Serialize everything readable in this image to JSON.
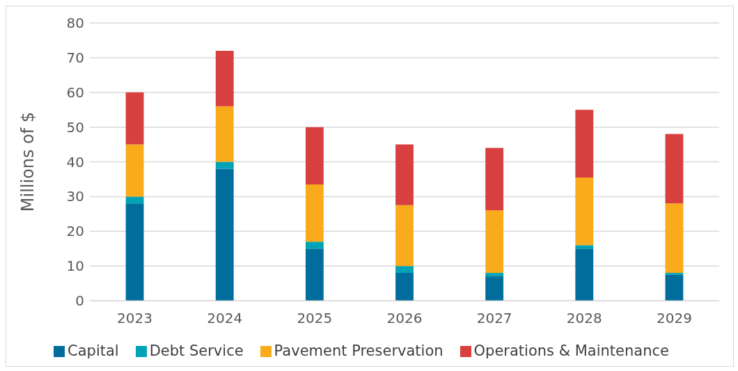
{
  "chart_data": {
    "type": "bar",
    "stacked": true,
    "ylabel": "Millions of $",
    "categories": [
      "2023",
      "2024",
      "2025",
      "2026",
      "2027",
      "2028",
      "2029"
    ],
    "series": [
      {
        "name": "Capital",
        "color": "#006d9c",
        "values": [
          28,
          38,
          15,
          8,
          7,
          15,
          7.5
        ]
      },
      {
        "name": "Debt Service",
        "color": "#00a3b6",
        "values": [
          2,
          2,
          2,
          2,
          1,
          1,
          0.5
        ]
      },
      {
        "name": "Pavement Preservation",
        "color": "#f9ab1b",
        "values": [
          15,
          16,
          16.5,
          17.5,
          18,
          19.5,
          20
        ]
      },
      {
        "name": "Operations & Maintenance",
        "color": "#d83f3f",
        "values": [
          15,
          16,
          16.5,
          17.5,
          18,
          19.5,
          20
        ]
      }
    ],
    "ylim": [
      0,
      80
    ],
    "yticks": [
      0,
      10,
      20,
      30,
      40,
      50,
      60,
      70,
      80
    ],
    "grid": "y",
    "legend": "bottom"
  }
}
